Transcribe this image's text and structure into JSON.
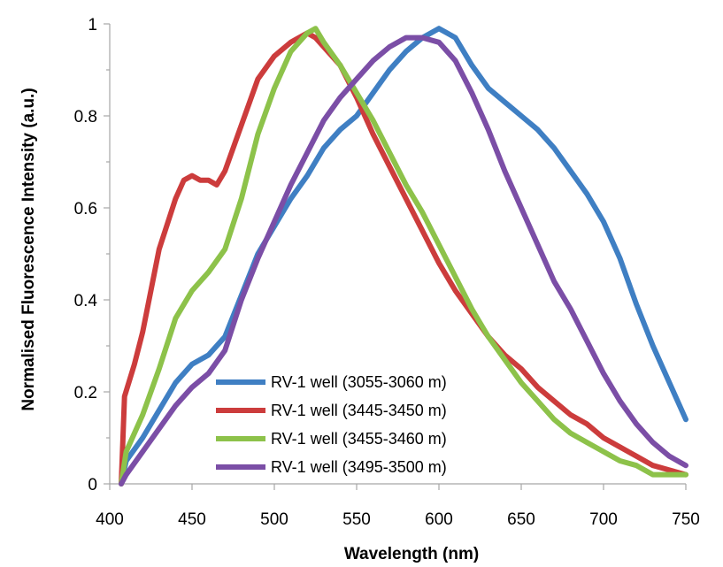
{
  "chart_data": {
    "type": "line",
    "title": "",
    "xlabel": "Wavelength (nm)",
    "ylabel": "Normalised Fluorescence Intensity (a.u.)",
    "xlim": [
      400,
      750
    ],
    "ylim": [
      0,
      1
    ],
    "xticks": [
      "400",
      "450",
      "500",
      "550",
      "600",
      "650",
      "700",
      "750"
    ],
    "yticks": [
      "0",
      "0.2",
      "0.4",
      "0.6",
      "0.8",
      "1"
    ],
    "grid": false,
    "legend_position": "bottom-center",
    "series": [
      {
        "name": "RV-1 well (3055-3060 m)",
        "color": "#3f7fc3",
        "x": [
          407,
          410,
          420,
          430,
          440,
          450,
          460,
          470,
          480,
          490,
          500,
          510,
          520,
          530,
          540,
          550,
          560,
          570,
          580,
          590,
          600,
          610,
          620,
          630,
          640,
          650,
          660,
          670,
          680,
          690,
          700,
          710,
          720,
          730,
          740,
          750
        ],
        "y": [
          0.0,
          0.05,
          0.1,
          0.16,
          0.22,
          0.26,
          0.28,
          0.32,
          0.41,
          0.5,
          0.56,
          0.62,
          0.67,
          0.73,
          0.77,
          0.8,
          0.85,
          0.9,
          0.94,
          0.97,
          0.99,
          0.97,
          0.91,
          0.86,
          0.83,
          0.8,
          0.77,
          0.73,
          0.68,
          0.63,
          0.57,
          0.49,
          0.39,
          0.3,
          0.22,
          0.14
        ]
      },
      {
        "name": "RV-1 well (3445-3450 m)",
        "color": "#cc3c3c",
        "x": [
          407,
          409,
          415,
          420,
          430,
          440,
          445,
          450,
          455,
          460,
          465,
          470,
          480,
          490,
          500,
          510,
          520,
          525,
          530,
          540,
          550,
          560,
          570,
          580,
          590,
          600,
          610,
          620,
          630,
          640,
          650,
          660,
          670,
          680,
          690,
          700,
          710,
          720,
          730,
          740,
          750
        ],
        "y": [
          0.0,
          0.19,
          0.26,
          0.33,
          0.51,
          0.62,
          0.66,
          0.67,
          0.66,
          0.66,
          0.65,
          0.68,
          0.78,
          0.88,
          0.93,
          0.96,
          0.98,
          0.97,
          0.95,
          0.91,
          0.84,
          0.76,
          0.69,
          0.62,
          0.55,
          0.48,
          0.42,
          0.37,
          0.32,
          0.28,
          0.25,
          0.21,
          0.18,
          0.15,
          0.13,
          0.1,
          0.08,
          0.06,
          0.04,
          0.03,
          0.02
        ]
      },
      {
        "name": "RV-1 well (3455-3460 m)",
        "color": "#8dc24a",
        "x": [
          407,
          410,
          420,
          430,
          440,
          450,
          460,
          470,
          480,
          490,
          500,
          510,
          520,
          525,
          530,
          540,
          550,
          560,
          570,
          580,
          590,
          600,
          610,
          620,
          630,
          640,
          650,
          660,
          670,
          680,
          690,
          700,
          710,
          720,
          730,
          740,
          750
        ],
        "y": [
          0.0,
          0.07,
          0.15,
          0.25,
          0.36,
          0.42,
          0.46,
          0.51,
          0.62,
          0.76,
          0.86,
          0.94,
          0.98,
          0.99,
          0.96,
          0.91,
          0.85,
          0.79,
          0.72,
          0.65,
          0.59,
          0.52,
          0.45,
          0.38,
          0.32,
          0.27,
          0.22,
          0.18,
          0.14,
          0.11,
          0.09,
          0.07,
          0.05,
          0.04,
          0.02,
          0.02,
          0.02
        ]
      },
      {
        "name": "RV-1 well (3495-3500 m)",
        "color": "#7b4ea6",
        "x": [
          407,
          410,
          420,
          430,
          440,
          450,
          460,
          470,
          480,
          490,
          500,
          510,
          520,
          530,
          540,
          550,
          560,
          570,
          580,
          590,
          600,
          610,
          620,
          630,
          640,
          650,
          660,
          670,
          680,
          690,
          700,
          710,
          720,
          730,
          740,
          750
        ],
        "y": [
          0.0,
          0.02,
          0.07,
          0.12,
          0.17,
          0.21,
          0.24,
          0.29,
          0.4,
          0.49,
          0.57,
          0.65,
          0.72,
          0.79,
          0.84,
          0.88,
          0.92,
          0.95,
          0.97,
          0.97,
          0.96,
          0.92,
          0.85,
          0.77,
          0.68,
          0.6,
          0.52,
          0.44,
          0.38,
          0.31,
          0.24,
          0.18,
          0.13,
          0.09,
          0.06,
          0.04
        ]
      }
    ]
  }
}
